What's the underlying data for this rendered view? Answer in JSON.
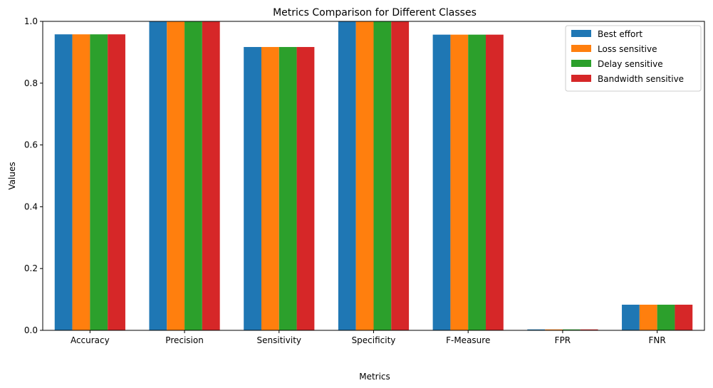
{
  "chart_data": {
    "type": "bar",
    "title": "Metrics Comparison for Different Classes",
    "xlabel": "Metrics",
    "ylabel": "Values",
    "ylim": [
      0,
      1.0
    ],
    "yticks": [
      "0.0",
      "0.2",
      "0.4",
      "0.6",
      "0.8",
      "1.0"
    ],
    "categories": [
      "Accuracy",
      "Precision",
      "Sensitivity",
      "Specificity",
      "F-Measure",
      "FPR",
      "FNR"
    ],
    "series": [
      {
        "name": "Best effort",
        "color": "#1f77b4",
        "values": [
          0.958,
          1.0,
          0.917,
          1.0,
          0.957,
          0.003,
          0.083
        ]
      },
      {
        "name": "Loss sensitive",
        "color": "#ff7f0e",
        "values": [
          0.958,
          1.0,
          0.917,
          1.0,
          0.957,
          0.003,
          0.083
        ]
      },
      {
        "name": "Delay sensitive",
        "color": "#2ca02c",
        "values": [
          0.958,
          1.0,
          0.917,
          1.0,
          0.957,
          0.003,
          0.083
        ]
      },
      {
        "name": "Bandwidth sensitive",
        "color": "#d62728",
        "values": [
          0.958,
          1.0,
          0.917,
          1.0,
          0.957,
          0.003,
          0.083
        ]
      }
    ],
    "grid": false,
    "legend_position": "top-right"
  }
}
